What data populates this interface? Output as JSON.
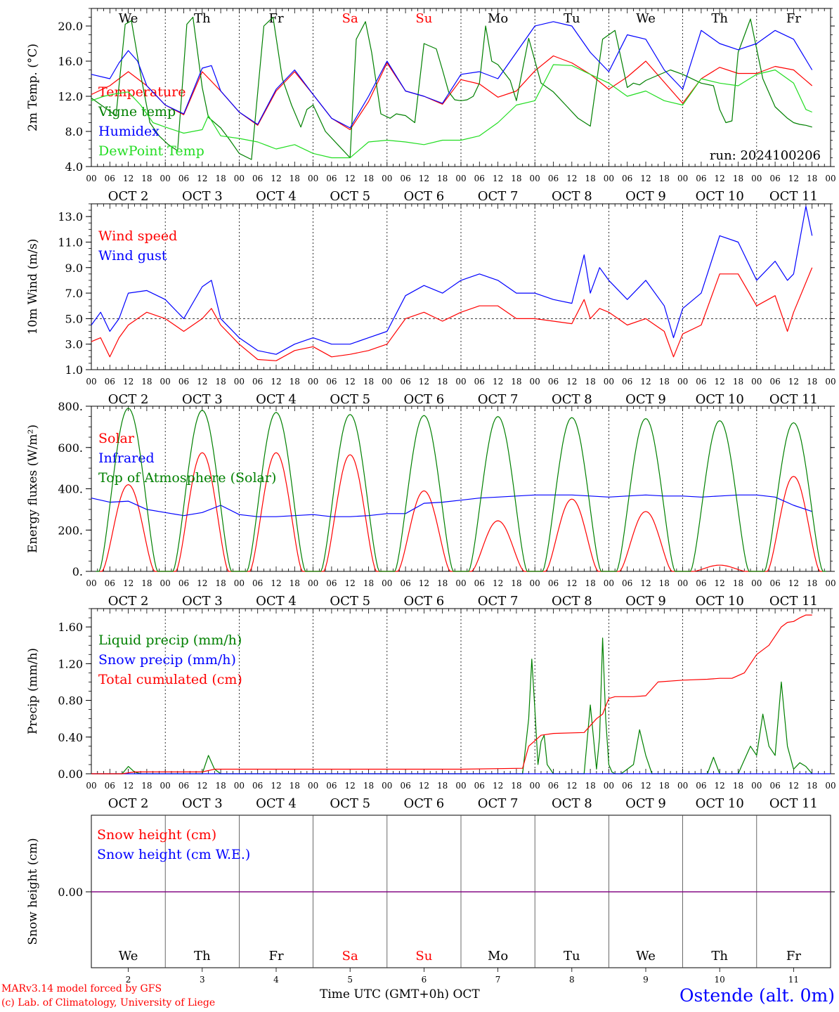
{
  "footer": {
    "credit_line1": "MARv3.14 model forced by GFS",
    "credit_line2": "(c) Lab. of Climatology, University of Liege",
    "x_axis_label": "Time UTC (GMT+0h) OCT",
    "station": "Ostende (alt. 0m)",
    "run": "run: 2024100206"
  },
  "days": {
    "weekday_labels": [
      "We",
      "Th",
      "Fr",
      "Sa",
      "Su",
      "Mo",
      "Tu",
      "We",
      "Th",
      "Fr"
    ],
    "weekend_flags": [
      false,
      false,
      false,
      true,
      true,
      false,
      false,
      false,
      false,
      false
    ],
    "date_labels": [
      "OCT  2",
      "OCT  3",
      "OCT  4",
      "OCT  5",
      "OCT  6",
      "OCT  7",
      "OCT  8",
      "OCT  9",
      "OCT 10",
      "OCT 11"
    ],
    "day_numbers": [
      "2",
      "3",
      "4",
      "5",
      "6",
      "7",
      "8",
      "9",
      "10",
      "11"
    ],
    "hour_ticks": [
      "00",
      "06",
      "12",
      "18"
    ],
    "final_tick": "00"
  },
  "colors": {
    "red": "#ff0000",
    "green": "#008000",
    "blue": "#0000ff",
    "light_green": "#22dd22",
    "purple": "#800080",
    "grid": "#000000"
  },
  "chart_data": [
    {
      "type": "line",
      "ylabel": "2m Temp. (°C)",
      "ylim": [
        4.0,
        22.0
      ],
      "yticks": [
        "4.0",
        "8.0",
        "12.0",
        "16.0",
        "20.0"
      ],
      "x_unit": "hours since Oct 2 00 UTC",
      "series": [
        {
          "name": "Temperature",
          "color": "#ff0000",
          "x": [
            0,
            6,
            12,
            18,
            24,
            30,
            36,
            42,
            48,
            54,
            60,
            66,
            72,
            78,
            84,
            90,
            96,
            102,
            108,
            114,
            120,
            126,
            132,
            138,
            144,
            150,
            156,
            162,
            168,
            174,
            180,
            186,
            192,
            198,
            204,
            210,
            216,
            222,
            228,
            234
          ],
          "y": [
            12.2,
            13.2,
            14.8,
            13.2,
            11.0,
            9.9,
            14.8,
            12.6,
            10.2,
            8.7,
            12.6,
            14.8,
            12.2,
            9.5,
            8.2,
            11.4,
            15.8,
            12.6,
            12.0,
            11.1,
            13.9,
            13.4,
            11.9,
            12.6,
            14.9,
            16.6,
            15.8,
            14.5,
            12.8,
            14.2,
            16.0,
            13.6,
            11.2,
            14.0,
            15.3,
            14.6,
            14.6,
            15.4,
            15.0,
            13.2
          ]
        },
        {
          "name": "Vigne temp",
          "color": "#008000",
          "x": [
            0,
            4,
            8,
            11,
            13,
            16,
            19,
            22,
            25,
            28,
            31,
            33,
            36,
            38,
            42,
            45,
            48,
            52,
            56,
            59,
            62,
            65,
            68,
            70,
            72,
            76,
            80,
            84,
            86,
            89,
            91,
            94,
            97,
            99,
            102,
            105,
            108,
            112,
            114,
            116,
            118,
            120,
            122,
            124,
            126,
            128,
            130,
            132,
            134,
            136,
            138,
            142,
            146,
            150,
            154,
            158,
            162,
            166,
            170,
            174,
            176,
            178,
            180,
            184,
            188,
            192,
            198,
            202,
            204,
            206,
            208,
            210,
            214,
            218,
            222,
            226,
            228,
            230,
            232,
            234
          ],
          "y": [
            11.8,
            10.8,
            9.8,
            20.2,
            20.6,
            14.5,
            9.0,
            7.5,
            6.5,
            5.8,
            20.2,
            21.0,
            13.0,
            9.6,
            8.4,
            7.0,
            5.5,
            4.8,
            20.0,
            21.0,
            14.0,
            11.0,
            8.5,
            10.5,
            11.0,
            8.0,
            6.5,
            5.0,
            18.5,
            20.5,
            17.0,
            10.0,
            9.5,
            10.0,
            9.8,
            9.0,
            18.0,
            17.4,
            15.0,
            12.5,
            11.6,
            11.5,
            11.6,
            12.0,
            13.5,
            20.0,
            16.0,
            15.6,
            14.7,
            13.8,
            11.5,
            18.6,
            13.5,
            12.5,
            11.0,
            9.5,
            8.6,
            18.5,
            19.5,
            13.0,
            13.5,
            13.3,
            13.8,
            14.4,
            15.0,
            14.5,
            13.5,
            13.2,
            10.5,
            9.0,
            9.2,
            17.0,
            20.8,
            14.0,
            10.8,
            9.5,
            9.0,
            8.8,
            8.7,
            8.5
          ]
        },
        {
          "name": "Humidex",
          "color": "#0000ff",
          "x": [
            0,
            6,
            9,
            12,
            15,
            18,
            24,
            30,
            36,
            39,
            42,
            48,
            54,
            60,
            66,
            72,
            78,
            84,
            90,
            96,
            102,
            108,
            114,
            120,
            126,
            132,
            138,
            144,
            150,
            156,
            162,
            168,
            174,
            180,
            186,
            192,
            198,
            204,
            210,
            216,
            222,
            228,
            234
          ],
          "y": [
            14.5,
            14.0,
            15.8,
            17.2,
            16.0,
            13.2,
            11.0,
            10.0,
            15.2,
            15.5,
            12.6,
            10.2,
            8.8,
            12.8,
            15.0,
            12.2,
            9.5,
            8.4,
            12.0,
            16.0,
            12.6,
            12.0,
            11.2,
            14.5,
            14.8,
            14.0,
            17.0,
            20.0,
            20.5,
            20.0,
            17.0,
            14.8,
            19.0,
            18.5,
            15.0,
            12.8,
            19.5,
            18.0,
            17.3,
            18.0,
            19.5,
            18.5,
            15.0
          ]
        },
        {
          "name": "DewPoint Temp",
          "color": "#22dd22",
          "x": [
            0,
            4,
            8,
            12,
            16,
            20,
            24,
            30,
            36,
            38,
            42,
            48,
            54,
            60,
            66,
            72,
            78,
            84,
            90,
            96,
            102,
            108,
            114,
            120,
            126,
            132,
            138,
            144,
            150,
            156,
            162,
            168,
            174,
            180,
            186,
            192,
            198,
            204,
            210,
            216,
            222,
            228,
            232,
            234
          ],
          "y": [
            11.5,
            12.0,
            12.3,
            12.5,
            11.0,
            9.0,
            8.5,
            7.8,
            8.2,
            9.8,
            7.5,
            7.2,
            6.8,
            6.0,
            6.5,
            5.5,
            5.0,
            5.0,
            6.8,
            7.0,
            6.8,
            6.5,
            7.0,
            7.0,
            7.5,
            9.0,
            11.0,
            11.5,
            15.6,
            15.5,
            14.5,
            13.5,
            12.0,
            12.6,
            11.5,
            11.0,
            14.0,
            13.5,
            13.2,
            14.5,
            15.0,
            13.5,
            10.5,
            10.2
          ]
        }
      ]
    },
    {
      "type": "line",
      "ylabel": "10m Wind (m/s)",
      "ylim": [
        1.0,
        14.0
      ],
      "yticks": [
        "1.0",
        "3.0",
        "5.0",
        "7.0",
        "9.0",
        "11.0",
        "13.0"
      ],
      "reference_line": 5.0,
      "series": [
        {
          "name": "Wind speed",
          "color": "#ff0000",
          "x": [
            0,
            3,
            6,
            9,
            12,
            18,
            24,
            30,
            36,
            39,
            42,
            48,
            54,
            60,
            66,
            72,
            78,
            84,
            90,
            96,
            102,
            108,
            114,
            120,
            126,
            132,
            138,
            144,
            150,
            156,
            160,
            162,
            165,
            168,
            174,
            180,
            186,
            189,
            192,
            198,
            204,
            210,
            216,
            222,
            226,
            228,
            234
          ],
          "y": [
            3.2,
            3.5,
            2.0,
            3.5,
            4.5,
            5.5,
            5.0,
            4.0,
            5.0,
            5.8,
            4.5,
            3.0,
            1.8,
            1.7,
            2.5,
            2.8,
            2.0,
            2.2,
            2.5,
            3.0,
            5.0,
            5.5,
            4.8,
            5.5,
            6.0,
            6.0,
            5.0,
            5.0,
            4.8,
            4.6,
            6.5,
            5.0,
            5.8,
            5.5,
            4.5,
            5.0,
            4.0,
            2.0,
            3.8,
            4.5,
            8.5,
            8.5,
            6.0,
            6.8,
            4.0,
            5.5,
            9.0
          ]
        },
        {
          "name": "Wind gust",
          "color": "#0000ff",
          "x": [
            0,
            3,
            6,
            9,
            12,
            18,
            24,
            30,
            36,
            39,
            42,
            48,
            54,
            60,
            66,
            72,
            78,
            84,
            90,
            96,
            102,
            108,
            114,
            120,
            126,
            132,
            138,
            144,
            150,
            156,
            160,
            162,
            165,
            168,
            174,
            180,
            186,
            189,
            192,
            198,
            204,
            210,
            216,
            222,
            226,
            228,
            232,
            234
          ],
          "y": [
            4.5,
            5.5,
            4.0,
            5.0,
            7.0,
            7.2,
            6.5,
            5.0,
            7.5,
            8.0,
            5.0,
            3.5,
            2.5,
            2.2,
            3.0,
            3.5,
            3.0,
            3.0,
            3.5,
            4.0,
            6.8,
            7.6,
            7.0,
            8.0,
            8.5,
            8.0,
            7.0,
            7.0,
            6.5,
            6.2,
            10.0,
            7.0,
            9.0,
            8.0,
            6.5,
            8.0,
            6.0,
            3.5,
            5.8,
            7.0,
            11.5,
            11.0,
            8.0,
            9.5,
            8.0,
            8.5,
            13.8,
            11.5
          ]
        }
      ]
    },
    {
      "type": "line",
      "ylabel": "Energy fluxes (W/m²)",
      "ylim": [
        0,
        800
      ],
      "yticks": [
        "0.",
        "200.",
        "400.",
        "600.",
        "800."
      ],
      "series": [
        {
          "name": "Solar",
          "color": "#ff0000",
          "peaks": [
            420,
            575,
            575,
            565,
            390,
            245,
            350,
            290,
            30,
            460
          ]
        },
        {
          "name": "Infrared",
          "color": "#0000ff",
          "x": [
            0,
            6,
            12,
            18,
            24,
            30,
            36,
            42,
            48,
            54,
            60,
            66,
            72,
            78,
            84,
            90,
            96,
            102,
            108,
            114,
            120,
            126,
            132,
            138,
            144,
            150,
            156,
            162,
            168,
            174,
            180,
            186,
            192,
            198,
            204,
            210,
            216,
            222,
            228,
            234
          ],
          "y": [
            355,
            335,
            340,
            300,
            285,
            270,
            285,
            320,
            275,
            265,
            265,
            270,
            275,
            265,
            265,
            270,
            280,
            280,
            330,
            335,
            345,
            355,
            360,
            365,
            370,
            370,
            370,
            365,
            360,
            365,
            370,
            365,
            365,
            360,
            365,
            370,
            370,
            360,
            320,
            290
          ]
        },
        {
          "name": "Top of Atmosphere (Solar)",
          "color": "#008000",
          "peaks": [
            790,
            780,
            770,
            760,
            755,
            750,
            745,
            740,
            730,
            720
          ]
        }
      ]
    },
    {
      "type": "line",
      "ylabel": "Precip (mm/h)",
      "ylim": [
        0.0,
        1.8
      ],
      "yticks": [
        "0.00",
        "0.40",
        "0.80",
        "1.20",
        "1.60"
      ],
      "series": [
        {
          "name": "Liquid precip (mm/h)",
          "color": "#008000",
          "x": [
            0,
            10,
            12,
            14,
            16,
            36,
            38,
            40,
            42,
            60,
            140,
            142,
            143,
            144,
            145,
            146,
            147,
            148,
            150,
            160,
            162,
            163,
            164,
            165,
            166,
            167,
            168,
            169,
            170,
            172,
            176,
            178,
            180,
            182,
            184,
            192,
            200,
            202,
            204,
            210,
            214,
            216,
            218,
            220,
            222,
            224,
            226,
            228,
            230,
            232,
            234
          ],
          "y": [
            0,
            0,
            0.08,
            0.02,
            0,
            0,
            0.2,
            0.05,
            0,
            0,
            0,
            0.6,
            1.25,
            0.7,
            0.1,
            0.35,
            0.42,
            0.1,
            0,
            0,
            0.75,
            0.4,
            0.05,
            0.4,
            1.48,
            0.6,
            0.1,
            0.02,
            0,
            0,
            0.1,
            0.48,
            0.2,
            0,
            0,
            0,
            0,
            0.18,
            0,
            0,
            0.3,
            0.2,
            0.65,
            0.3,
            0.2,
            1.0,
            0.3,
            0.05,
            0.12,
            0.08,
            0
          ]
        },
        {
          "name": "Snow precip (mm/h)",
          "color": "#0000ff",
          "constant": 0.0
        },
        {
          "name": "Total cumulated (cm)",
          "color": "#ff0000",
          "x": [
            0,
            10,
            14,
            36,
            40,
            60,
            100,
            120,
            140,
            142,
            146,
            150,
            160,
            164,
            166,
            168,
            170,
            176,
            180,
            184,
            192,
            200,
            204,
            208,
            212,
            216,
            220,
            224,
            226,
            228,
            230,
            232,
            234
          ],
          "y": [
            0,
            0,
            0.02,
            0.02,
            0.05,
            0.05,
            0.05,
            0.05,
            0.06,
            0.3,
            0.42,
            0.44,
            0.45,
            0.6,
            0.65,
            0.82,
            0.84,
            0.84,
            0.85,
            1.0,
            1.02,
            1.03,
            1.04,
            1.04,
            1.1,
            1.3,
            1.4,
            1.6,
            1.65,
            1.66,
            1.7,
            1.73,
            1.73
          ]
        }
      ]
    },
    {
      "type": "line",
      "ylabel": "Snow height (cm)",
      "yticks": [
        "0.00"
      ],
      "series": [
        {
          "name": "Snow height (cm)",
          "color": "#ff0000",
          "constant": 0.0
        },
        {
          "name": "Snow height (cm W.E.)",
          "color": "#0000ff",
          "constant": 0.0
        }
      ]
    }
  ]
}
